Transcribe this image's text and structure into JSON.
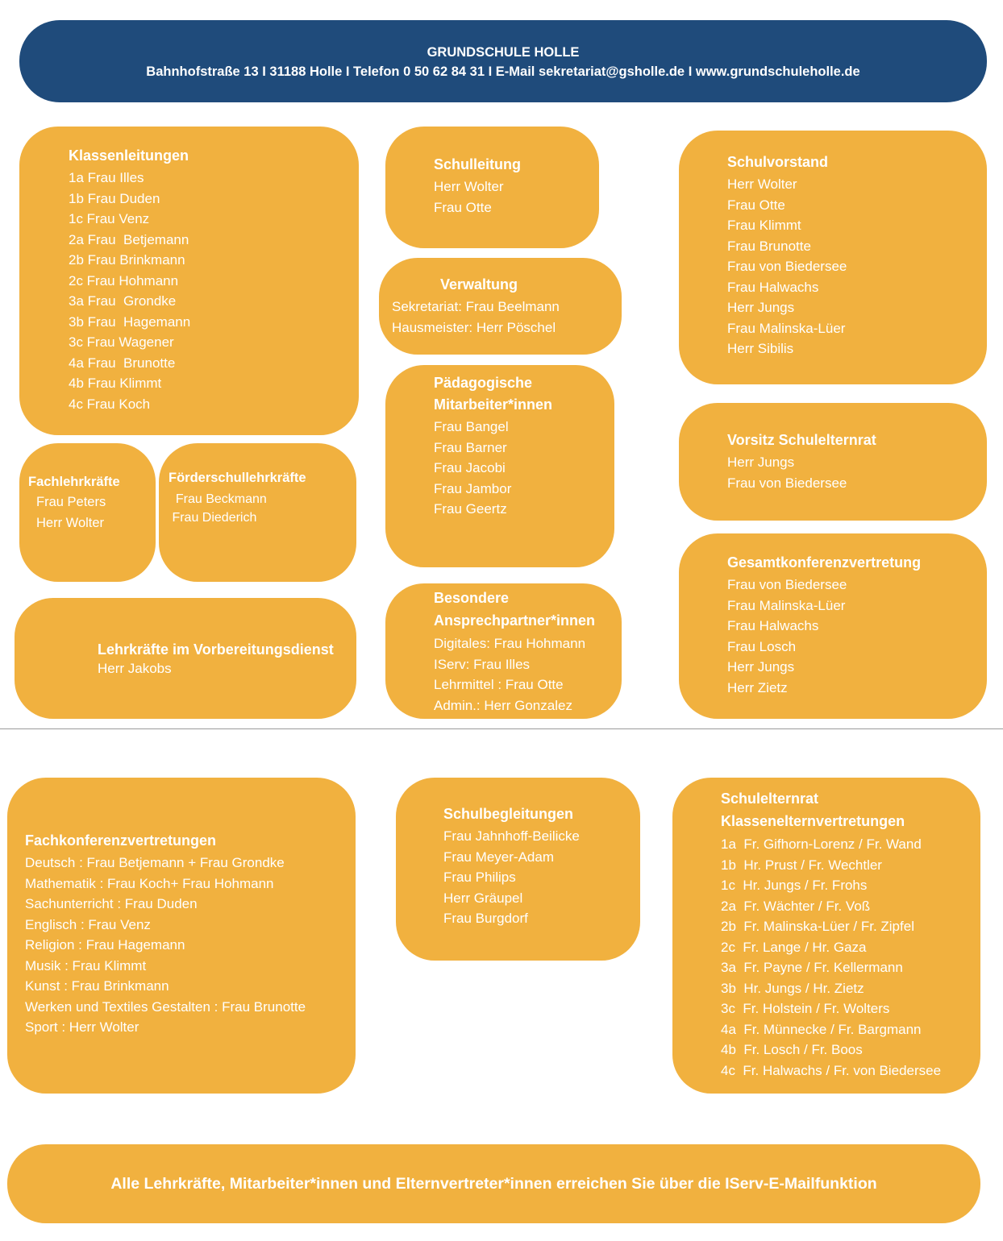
{
  "colors": {
    "header": "#1f4b7b",
    "box": "#f1b13f",
    "text": "#ffffff"
  },
  "header": {
    "title": "GRUNDSCHULE HOLLE",
    "address": "Bahnhofstraße 13 I 31188 Holle I Telefon 0 50 62 84 31 I E-Mail sekretariat@gsholle.de I www.grundschuleholle.de"
  },
  "boxes": [
    {
      "id": "b-klassen",
      "title": [
        "Klassenleitungen"
      ],
      "lines": [
        "1a Frau Illes",
        "1b Frau Duden",
        "1c Frau Venz",
        "2a Frau  Betjemann",
        "2b Frau Brinkmann",
        "2c Frau Hohmann",
        "3a Frau  Grondke",
        "3b Frau  Hagemann",
        "3c Frau Wagener",
        "4a Frau  Brunotte",
        "4b Frau Klimmt",
        "4c Frau Koch"
      ]
    },
    {
      "id": "b-schulleitung",
      "title": [
        "Schulleitung"
      ],
      "lines": [
        "Herr Wolter",
        "Frau Otte"
      ]
    },
    {
      "id": "b-verwaltung",
      "title": [
        "Verwaltung"
      ],
      "lines": [
        "Sekretariat: Frau Beelmann",
        "Hausmeister: Herr Pöschel"
      ]
    },
    {
      "id": "b-paed",
      "title": [
        "Pädagogische",
        "Mitarbeiter*innen"
      ],
      "lines": [
        "Frau Bangel",
        "Frau Barner",
        "Frau Jacobi",
        "Frau Jambor",
        "Frau Geertz"
      ]
    },
    {
      "id": "b-besondere",
      "title": [
        "Besondere",
        "Ansprechpartner*innen"
      ],
      "lines": [
        "Digitales: Frau Hohmann",
        "IServ: Frau Illes",
        "Lehrmittel : Frau Otte",
        "Admin.: Herr Gonzalez"
      ]
    },
    {
      "id": "b-schulvorstand",
      "title": [
        "Schulvorstand"
      ],
      "lines": [
        "Herr Wolter",
        "Frau Otte",
        "Frau Klimmt",
        "Frau Brunotte",
        "Frau von Biedersee",
        "Frau Halwachs",
        "Herr Jungs",
        "Frau Malinska-Lüer",
        "Herr Sibilis"
      ]
    },
    {
      "id": "b-vorsitz",
      "title": [
        "Vorsitz Schulelternrat"
      ],
      "lines": [
        "Herr Jungs",
        "Frau von Biedersee"
      ]
    },
    {
      "id": "b-gesamt",
      "title": [
        "Gesamtkonferenzvertretung"
      ],
      "lines": [
        "Frau von Biedersee",
        "Frau Malinska-Lüer",
        "Frau Halwachs",
        "Frau Losch",
        "Herr Jungs",
        "Herr Zietz"
      ]
    },
    {
      "id": "b-fach",
      "title": [
        "Fachlehrkräfte"
      ],
      "lines": [
        "Frau Peters",
        "Herr Wolter"
      ]
    },
    {
      "id": "b-foerder",
      "title": [
        "Förderschullehrkräfte"
      ],
      "lines": [
        "  Frau Beckmann",
        " Frau Diederich"
      ]
    },
    {
      "id": "b-vorbereitung",
      "title": [
        "Lehrkräfte im Vorbereitungsdienst"
      ],
      "lines": [
        "Herr Jakobs"
      ]
    },
    {
      "id": "b-fachkonf",
      "title": [
        "Fachkonferenzvertretungen"
      ],
      "lines": [
        "Deutsch : Frau Betjemann + Frau Grondke",
        "Mathematik : Frau Koch+ Frau Hohmann",
        "Sachunterricht : Frau Duden",
        "Englisch : Frau Venz",
        "Religion : Frau Hagemann",
        "Musik : Frau Klimmt",
        "Kunst : Frau Brinkmann",
        "Werken und Textiles Gestalten : Frau Brunotte",
        "Sport : Herr Wolter"
      ]
    },
    {
      "id": "b-schulbegl",
      "title": [
        "Schulbegleitungen"
      ],
      "lines": [
        "Frau Jahnhoff-Beilicke",
        "Frau Meyer-Adam",
        "Frau Philips",
        "Herr Gräupel",
        "Frau Burgdorf"
      ]
    },
    {
      "id": "b-ser",
      "title": [
        "Schulelternrat",
        "Klassenelternvertretungen"
      ],
      "lines": [
        "1a  Fr. Gifhorn-Lorenz / Fr. Wand",
        "1b  Hr. Prust / Fr. Wechtler",
        "1c  Hr. Jungs / Fr. Frohs",
        "2a  Fr. Wächter / Fr. Voß",
        "2b  Fr. Malinska-Lüer / Fr. Zipfel",
        "2c  Fr. Lange / Hr. Gaza",
        "3a  Fr. Payne / Fr. Kellermann",
        "3b  Hr. Jungs / Hr. Zietz",
        "3c  Fr. Holstein / Fr. Wolters",
        "4a  Fr. Münnecke / Fr. Bargmann",
        "4b  Fr. Losch / Fr. Boos",
        "4c  Fr. Halwachs / Fr. von Biedersee"
      ]
    }
  ],
  "footer": {
    "text": "Alle Lehrkräfte, Mitarbeiter*innen und Elternvertreter*innen erreichen Sie über die IServ-E-Mailfunktion"
  }
}
